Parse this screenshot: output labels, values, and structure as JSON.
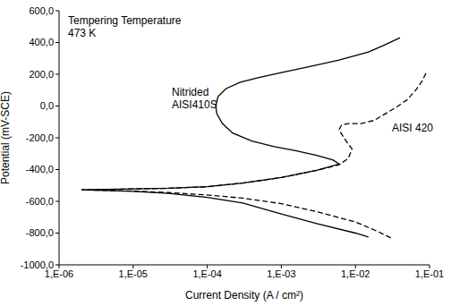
{
  "chart_data": {
    "type": "line",
    "x_label": "Current Density (A / cm²)",
    "y_label": "Potential (mV-SCE)",
    "annotations": [
      "Tempering Temperature",
      "473 K"
    ],
    "log": "x",
    "grid": false,
    "xlim": [
      1e-06,
      0.1
    ],
    "xticks": [
      {
        "value": 1e-06,
        "label": "1,E-06"
      },
      {
        "value": 1e-05,
        "label": "1,E-05"
      },
      {
        "value": 0.0001,
        "label": "1,E-04"
      },
      {
        "value": 0.001,
        "label": "1,E-03"
      },
      {
        "value": 0.01,
        "label": "1,E-02"
      },
      {
        "value": 0.1,
        "label": "1,E-01"
      }
    ],
    "ylim": [
      -1000,
      600
    ],
    "yticks": [
      {
        "value": -1000,
        "label": "-1000,0"
      },
      {
        "value": -800,
        "label": "-800,0"
      },
      {
        "value": -600,
        "label": "-600,0"
      },
      {
        "value": -400,
        "label": "-400,0"
      },
      {
        "value": -200,
        "label": "-200,0"
      },
      {
        "value": 0,
        "label": "0,0"
      },
      {
        "value": 200,
        "label": "200,0"
      },
      {
        "value": 400,
        "label": "400,0"
      },
      {
        "value": 600,
        "label": "600,0"
      }
    ],
    "series": [
      {
        "name": "Nitrided AISI410S",
        "color": "#000000",
        "line_style": "solid",
        "x": [
          0.015,
          0.01,
          0.003,
          0.001,
          0.0003,
          0.0001,
          3e-05,
          1e-05,
          2e-06,
          1e-05,
          3e-05,
          0.0001,
          0.0003,
          0.001,
          0.003,
          0.006,
          0.005,
          0.003,
          0.0015,
          0.0008,
          0.0004,
          0.00022,
          0.00016,
          0.000135,
          0.00013,
          0.00014,
          0.00018,
          0.00028,
          0.0005,
          0.001,
          0.0025,
          0.006,
          0.015,
          0.025,
          0.04
        ],
        "values": [
          -825,
          -800,
          -740,
          -680,
          -610,
          -575,
          -550,
          -537,
          -528,
          -522,
          -518,
          -508,
          -485,
          -450,
          -405,
          -365,
          -340,
          -310,
          -280,
          -255,
          -220,
          -170,
          -110,
          -50,
          0,
          60,
          110,
          150,
          180,
          210,
          250,
          290,
          340,
          385,
          430
        ]
      },
      {
        "name": "AISI 420",
        "color": "#000000",
        "line_style": "dashed",
        "x": [
          0.03,
          0.02,
          0.01,
          0.003,
          0.001,
          0.0003,
          0.0001,
          3e-05,
          1e-05,
          2e-06,
          1e-05,
          3e-05,
          0.0001,
          0.0003,
          0.001,
          0.003,
          0.006,
          0.008,
          0.009,
          0.008,
          0.007,
          0.006,
          0.0065,
          0.008,
          0.012,
          0.018,
          0.025,
          0.035,
          0.05,
          0.065,
          0.08,
          0.09
        ],
        "values": [
          -830,
          -790,
          -730,
          -665,
          -615,
          -580,
          -560,
          -545,
          -535,
          -528,
          -522,
          -518,
          -508,
          -485,
          -450,
          -405,
          -370,
          -330,
          -270,
          -240,
          -200,
          -150,
          -120,
          -110,
          -110,
          -90,
          -50,
          -10,
          40,
          100,
          160,
          210
        ]
      }
    ]
  }
}
